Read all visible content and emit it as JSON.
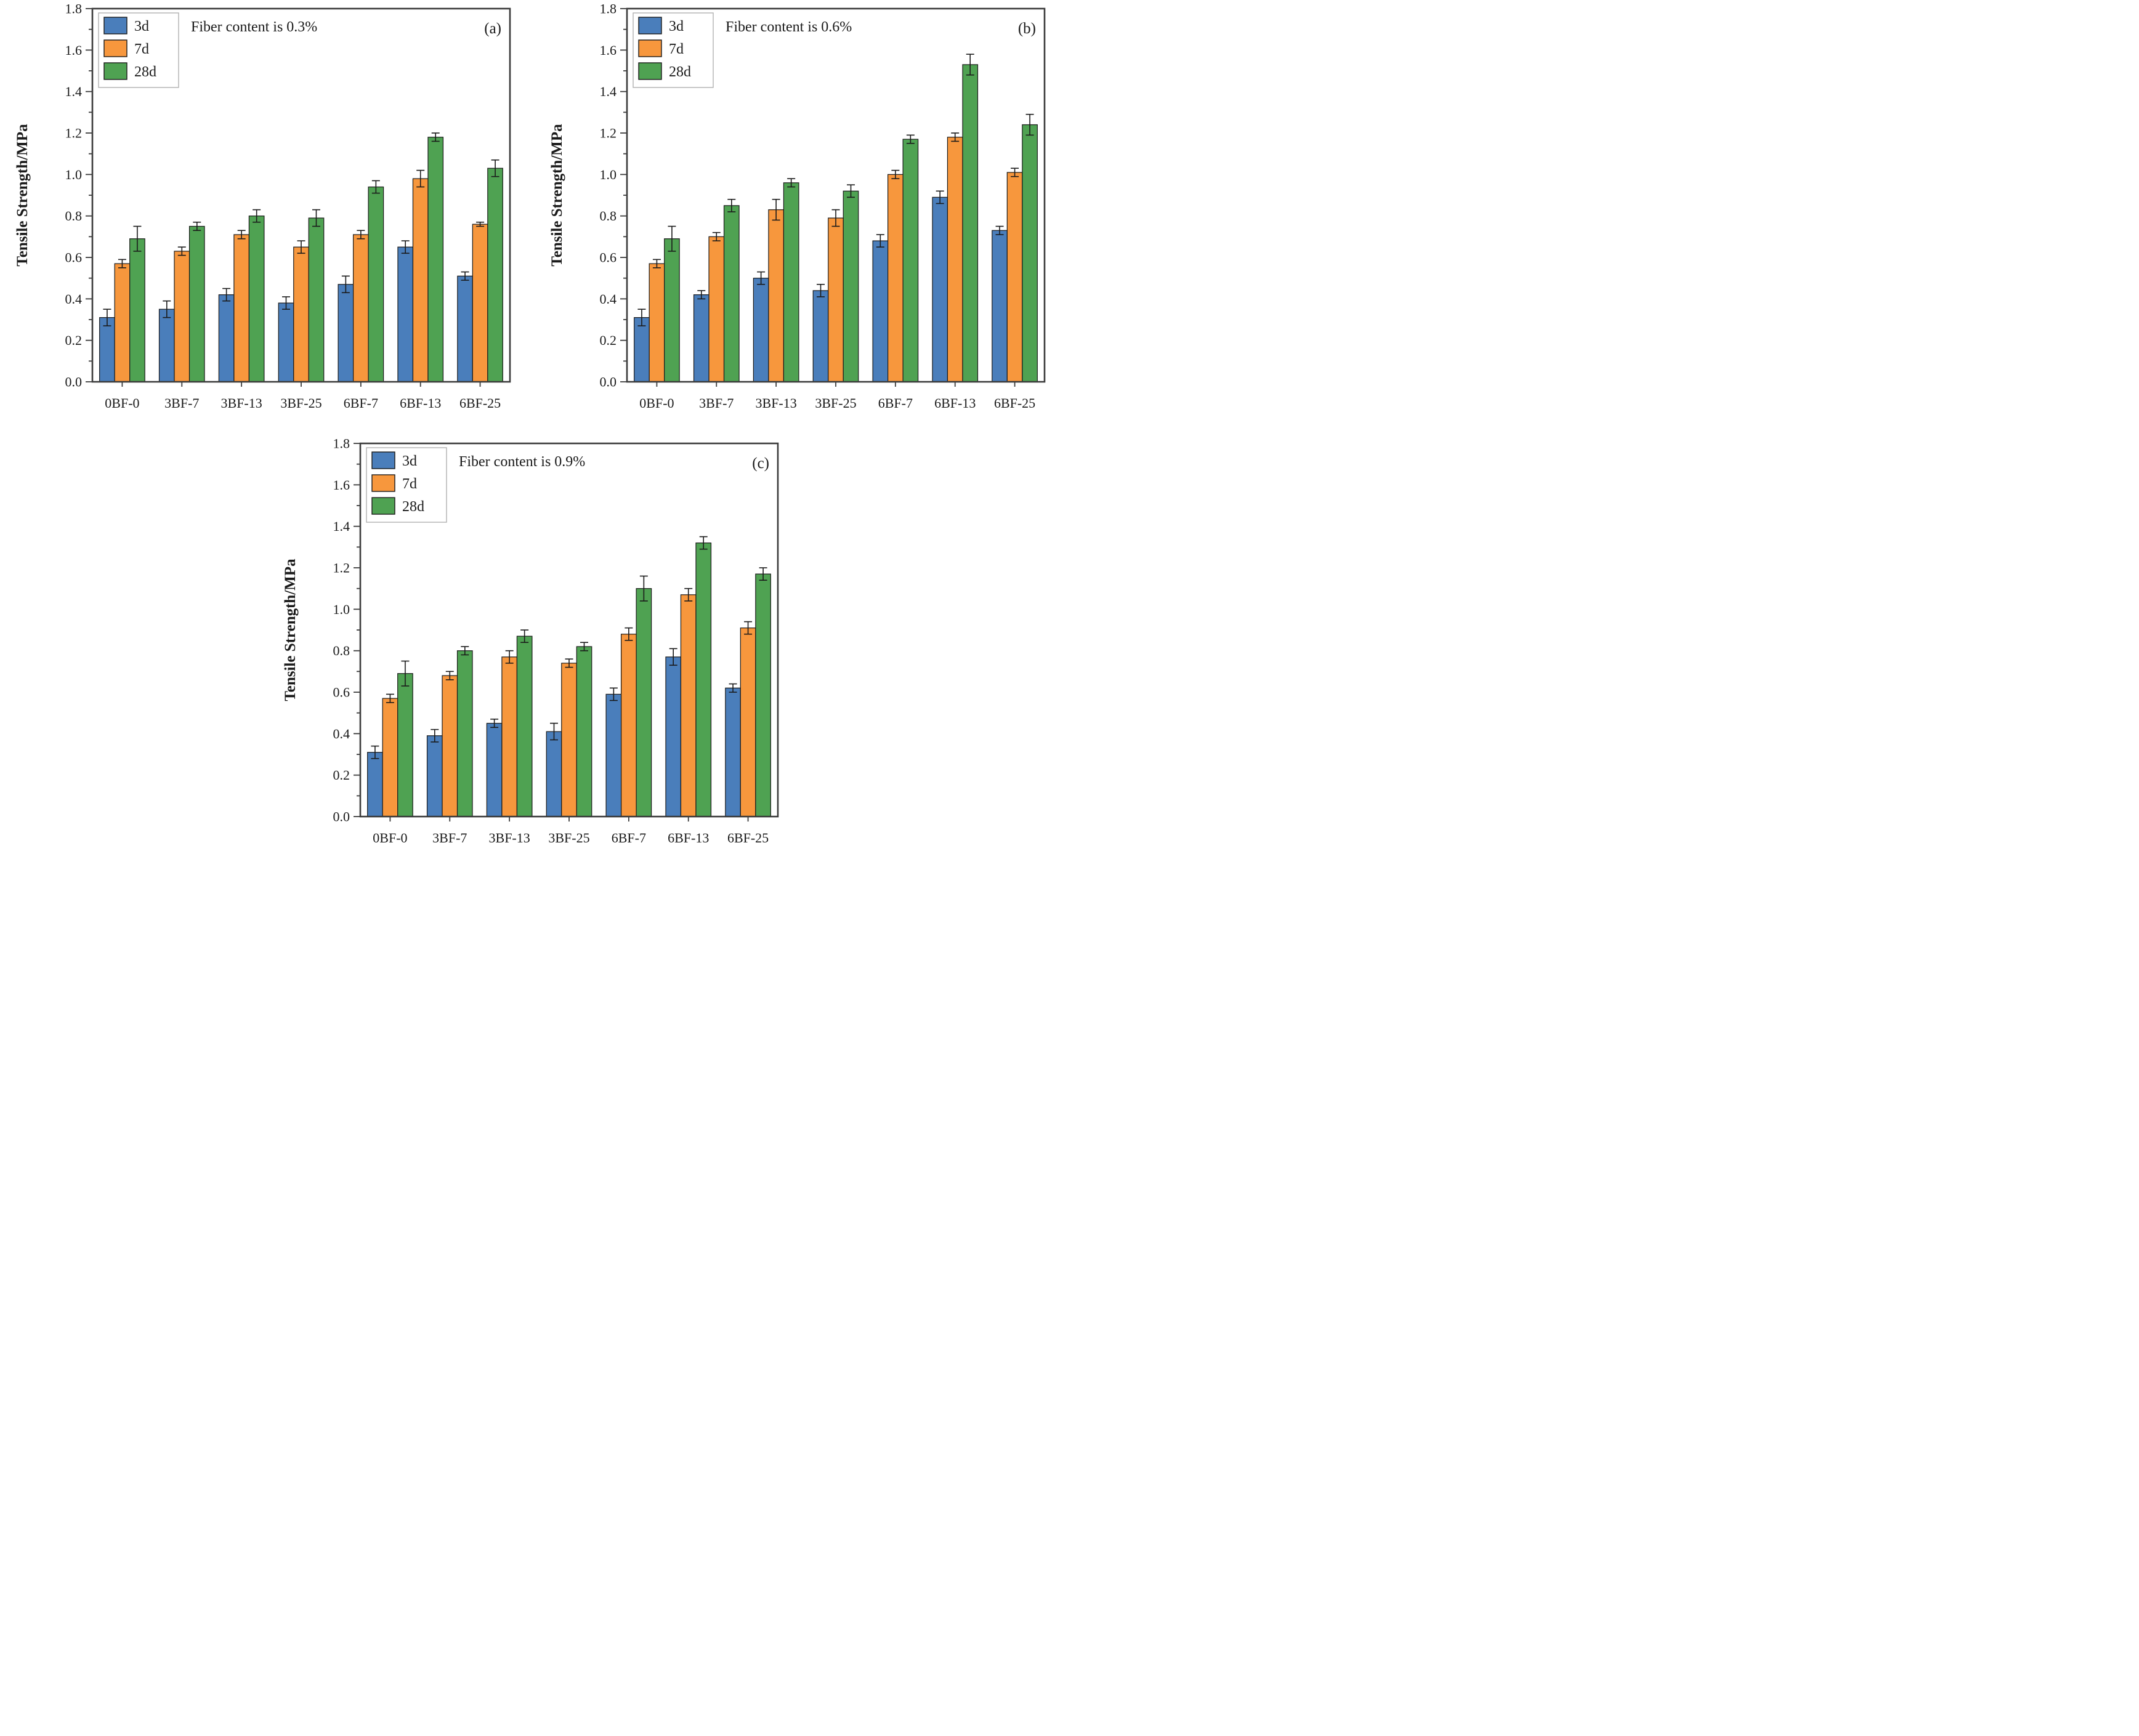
{
  "figure": {
    "background": "#ffffff",
    "ylabel": "Tensile Strength/MPa",
    "ylim": [
      0.0,
      1.8
    ],
    "ytick_step": 0.2,
    "ytick_minor_step": 0.1,
    "legend_labels": [
      "3d",
      "7d",
      "28d"
    ],
    "series_colors": [
      "#4a7ebb",
      "#f7973d",
      "#4fa252"
    ],
    "bar_edge_color": "#1a1a1a",
    "error_bar_color": "#1a1a1a",
    "frame_color": "#3c3c3c",
    "text_color": "#1a1a1a",
    "legend_border_color": "#b0b0b0"
  },
  "chart_data": [
    {
      "type": "bar",
      "panel_label": "(a)",
      "title": "Fiber content is 0.3%",
      "xlabel": "",
      "ylabel": "Tensile Strength/MPa",
      "ylim": [
        0.0,
        1.8
      ],
      "categories": [
        "0BF-0",
        "3BF-7",
        "3BF-13",
        "3BF-25",
        "6BF-7",
        "6BF-13",
        "6BF-25"
      ],
      "legend_position": "upper-left",
      "grid": false,
      "series": [
        {
          "name": "3d",
          "color": "#4a7ebb",
          "values": [
            0.31,
            0.35,
            0.42,
            0.38,
            0.47,
            0.65,
            0.51
          ],
          "errors": [
            0.04,
            0.04,
            0.03,
            0.03,
            0.04,
            0.03,
            0.02
          ]
        },
        {
          "name": "7d",
          "color": "#f7973d",
          "values": [
            0.57,
            0.63,
            0.71,
            0.65,
            0.71,
            0.98,
            0.76
          ],
          "errors": [
            0.02,
            0.02,
            0.02,
            0.03,
            0.02,
            0.04,
            0.01
          ]
        },
        {
          "name": "28d",
          "color": "#4fa252",
          "values": [
            0.69,
            0.75,
            0.8,
            0.79,
            0.94,
            1.18,
            1.03
          ],
          "errors": [
            0.06,
            0.02,
            0.03,
            0.04,
            0.03,
            0.02,
            0.04
          ]
        }
      ]
    },
    {
      "type": "bar",
      "panel_label": "(b)",
      "title": "Fiber content is 0.6%",
      "xlabel": "",
      "ylabel": "Tensile Strength/MPa",
      "ylim": [
        0.0,
        1.8
      ],
      "categories": [
        "0BF-0",
        "3BF-7",
        "3BF-13",
        "3BF-25",
        "6BF-7",
        "6BF-13",
        "6BF-25"
      ],
      "legend_position": "upper-left",
      "grid": false,
      "series": [
        {
          "name": "3d",
          "color": "#4a7ebb",
          "values": [
            0.31,
            0.42,
            0.5,
            0.44,
            0.68,
            0.89,
            0.73
          ],
          "errors": [
            0.04,
            0.02,
            0.03,
            0.03,
            0.03,
            0.03,
            0.02
          ]
        },
        {
          "name": "7d",
          "color": "#f7973d",
          "values": [
            0.57,
            0.7,
            0.83,
            0.79,
            1.0,
            1.18,
            1.01
          ],
          "errors": [
            0.02,
            0.02,
            0.05,
            0.04,
            0.02,
            0.02,
            0.02
          ]
        },
        {
          "name": "28d",
          "color": "#4fa252",
          "values": [
            0.69,
            0.85,
            0.96,
            0.92,
            1.17,
            1.53,
            1.24
          ],
          "errors": [
            0.06,
            0.03,
            0.02,
            0.03,
            0.02,
            0.05,
            0.05
          ]
        }
      ]
    },
    {
      "type": "bar",
      "panel_label": "(c)",
      "title": "Fiber content is 0.9%",
      "xlabel": "",
      "ylabel": "Tensile Strength/MPa",
      "ylim": [
        0.0,
        1.8
      ],
      "categories": [
        "0BF-0",
        "3BF-7",
        "3BF-13",
        "3BF-25",
        "6BF-7",
        "6BF-13",
        "6BF-25"
      ],
      "legend_position": "upper-left",
      "grid": false,
      "series": [
        {
          "name": "3d",
          "color": "#4a7ebb",
          "values": [
            0.31,
            0.39,
            0.45,
            0.41,
            0.59,
            0.77,
            0.62
          ],
          "errors": [
            0.03,
            0.03,
            0.02,
            0.04,
            0.03,
            0.04,
            0.02
          ]
        },
        {
          "name": "7d",
          "color": "#f7973d",
          "values": [
            0.57,
            0.68,
            0.77,
            0.74,
            0.88,
            1.07,
            0.91
          ],
          "errors": [
            0.02,
            0.02,
            0.03,
            0.02,
            0.03,
            0.03,
            0.03
          ]
        },
        {
          "name": "28d",
          "color": "#4fa252",
          "values": [
            0.69,
            0.8,
            0.87,
            0.82,
            1.1,
            1.32,
            1.17
          ],
          "errors": [
            0.06,
            0.02,
            0.03,
            0.02,
            0.06,
            0.03,
            0.03
          ]
        }
      ]
    }
  ]
}
